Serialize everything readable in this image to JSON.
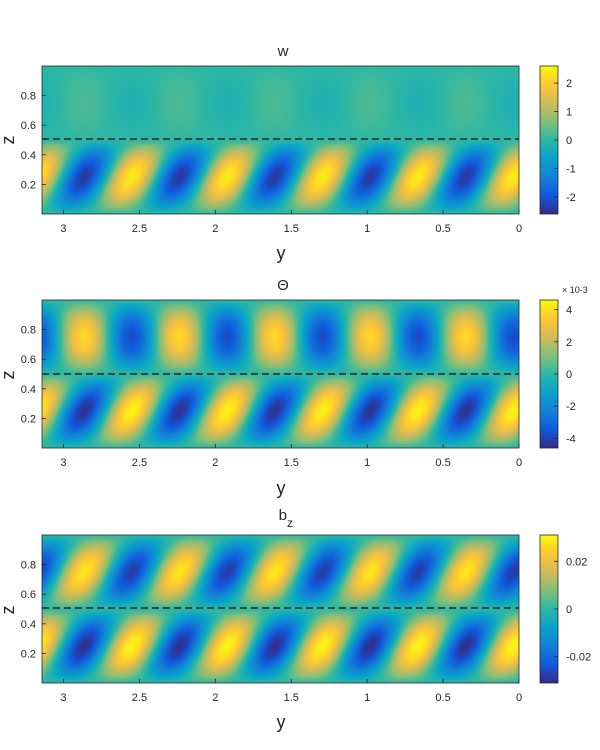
{
  "chart_data": [
    {
      "type": "heatmap",
      "title": "w",
      "xlabel": "y",
      "ylabel": "z",
      "xlim": [
        0,
        3.14159
      ],
      "x_reversed": true,
      "ylim": [
        0,
        1
      ],
      "xticks": [
        "3",
        "2.5",
        "2",
        "1.5",
        "1",
        "0.5",
        "0"
      ],
      "yticks": [
        "0.2",
        "0.4",
        "0.6",
        "0.8"
      ],
      "colorbar": {
        "ticks": [
          "-2",
          "-1",
          "0",
          "1",
          "2"
        ],
        "clim": [
          -2.6,
          2.6
        ],
        "multiplier": ""
      },
      "colormap": "parula",
      "dashed_line_z": 0.5,
      "description_fields": {
        "lower_amplitude": 2.4,
        "upper_amplitude": 0.22,
        "periods": 5,
        "tilt": 0.7,
        "upper_tilt": 0.0
      }
    },
    {
      "type": "heatmap",
      "title": "Θ",
      "xlabel": "y",
      "ylabel": "z",
      "xlim": [
        0,
        3.14159
      ],
      "x_reversed": true,
      "ylim": [
        0,
        1
      ],
      "xticks": [
        "3",
        "2.5",
        "2",
        "1.5",
        "1",
        "0.5",
        "0"
      ],
      "yticks": [
        "0.2",
        "0.4",
        "0.6",
        "0.8"
      ],
      "colorbar": {
        "ticks": [
          "-4",
          "-2",
          "0",
          "2",
          "4"
        ],
        "clim": [
          -4.6,
          4.6
        ],
        "multiplier": "× 10⁻³"
      },
      "colormap": "parula",
      "dashed_line_z": 0.5,
      "description_fields": {
        "lower_amplitude": 4.4,
        "upper_amplitude": 3.8,
        "periods": 5,
        "tilt": 0.7,
        "upper_tilt": 0.0
      }
    },
    {
      "type": "heatmap",
      "title": "b_z",
      "xlabel": "y",
      "ylabel": "z",
      "xlim": [
        0,
        3.14159
      ],
      "x_reversed": true,
      "ylim": [
        0,
        1
      ],
      "xticks": [
        "3",
        "2.5",
        "2",
        "1.5",
        "1",
        "0.5",
        "0"
      ],
      "yticks": [
        "0.2",
        "0.4",
        "0.6",
        "0.8"
      ],
      "colorbar": {
        "ticks": [
          "-0.02",
          "0",
          "0.02"
        ],
        "clim": [
          -0.031,
          0.031
        ],
        "multiplier": ""
      },
      "colormap": "parula",
      "dashed_line_z": 0.5,
      "description_fields": {
        "lower_amplitude": 0.03,
        "upper_amplitude": 0.028,
        "periods": 5,
        "tilt": 0.7,
        "upper_tilt": 0.7
      }
    }
  ],
  "labels": {
    "panel1_title": "w",
    "panel2_title": "Θ",
    "panel3_title_main": "b",
    "panel3_title_sub": "z",
    "xlabel": "y",
    "ylabel": "z",
    "cb2_multiplier": "× 10-3"
  }
}
